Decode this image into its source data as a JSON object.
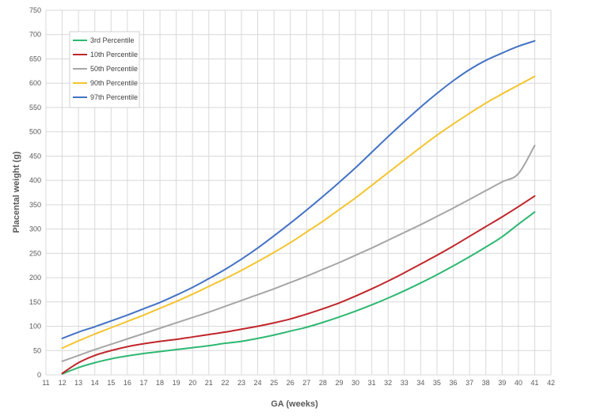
{
  "chart_data": {
    "type": "line",
    "title": "",
    "xlabel": "GA (weeks)",
    "ylabel": "Placental weight (g)",
    "xlim": [
      11,
      42
    ],
    "ylim": [
      0,
      750
    ],
    "x_ticks": [
      11,
      12,
      13,
      14,
      15,
      16,
      17,
      18,
      19,
      20,
      21,
      22,
      23,
      24,
      25,
      26,
      27,
      28,
      29,
      30,
      31,
      32,
      33,
      34,
      35,
      36,
      37,
      38,
      39,
      40,
      41,
      42
    ],
    "y_ticks": [
      0,
      50,
      100,
      150,
      200,
      250,
      300,
      350,
      400,
      450,
      500,
      550,
      600,
      650,
      700,
      750
    ],
    "grid": true,
    "legend_position": "top-left",
    "x": [
      12,
      13,
      14,
      15,
      16,
      17,
      18,
      19,
      20,
      21,
      22,
      23,
      24,
      25,
      26,
      27,
      28,
      29,
      30,
      31,
      32,
      33,
      34,
      35,
      36,
      37,
      38,
      39,
      40,
      41
    ],
    "series": [
      {
        "name": "3rd Percentile",
        "color": "#2eb872",
        "values": [
          2,
          15,
          25,
          33,
          39,
          44,
          48,
          52,
          56,
          60,
          65,
          69,
          75,
          82,
          90,
          98,
          108,
          119,
          131,
          144,
          158,
          173,
          189,
          206,
          224,
          243,
          263,
          284,
          310,
          335
        ]
      },
      {
        "name": "10th Percentile",
        "color": "#c0262b",
        "values": [
          3,
          25,
          40,
          50,
          58,
          64,
          69,
          73,
          78,
          83,
          88,
          94,
          100,
          107,
          115,
          125,
          136,
          148,
          162,
          177,
          193,
          210,
          228,
          246,
          265,
          285,
          305,
          325,
          346,
          368
        ]
      },
      {
        "name": "50th Percentile",
        "color": "#a6a6a6",
        "values": [
          28,
          40,
          52,
          63,
          74,
          85,
          96,
          107,
          118,
          129,
          141,
          153,
          165,
          177,
          190,
          203,
          217,
          231,
          246,
          261,
          277,
          293,
          309,
          326,
          343,
          361,
          379,
          397,
          414,
          472
        ]
      },
      {
        "name": "90th Percentile",
        "color": "#f4c430",
        "values": [
          55,
          70,
          84,
          97,
          110,
          123,
          137,
          151,
          166,
          182,
          198,
          215,
          233,
          252,
          272,
          294,
          316,
          340,
          364,
          390,
          416,
          442,
          468,
          493,
          516,
          538,
          559,
          578,
          596,
          614
        ]
      },
      {
        "name": "97th Percentile",
        "color": "#4472c4",
        "values": [
          75,
          88,
          99,
          111,
          123,
          136,
          149,
          164,
          180,
          198,
          217,
          238,
          261,
          286,
          312,
          339,
          367,
          396,
          426,
          458,
          490,
          521,
          551,
          579,
          605,
          628,
          647,
          662,
          676,
          687
        ]
      }
    ]
  }
}
